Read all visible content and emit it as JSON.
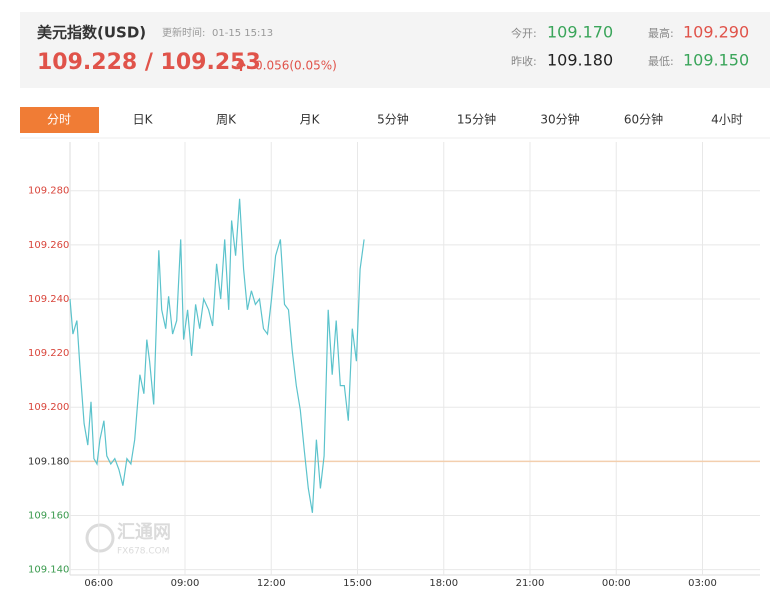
{
  "header": {
    "title": "美元指数(USD)",
    "update_label": "更新时间:",
    "update_time": "01-15 15:13",
    "price": "109.228 / 109.253",
    "change": "0.056(0.05%)",
    "open_label": "今开:",
    "open": "109.170",
    "high_label": "最高:",
    "high": "109.290",
    "prev_close_label": "昨收:",
    "prev_close": "109.180",
    "low_label": "最低:",
    "low": "109.150"
  },
  "tabs": [
    "分时",
    "日K",
    "周K",
    "月K",
    "5分钟",
    "15分钟",
    "30分钟",
    "60分钟",
    "4小时"
  ],
  "watermark": {
    "name": "汇通网",
    "site": "FX678.COM"
  },
  "chart_data": {
    "type": "line",
    "reference_line": 109.18,
    "reference_color": "#f3cfae",
    "grid": true,
    "xlim": [
      5,
      29
    ],
    "xticks": [
      {
        "value": 6,
        "label": "06:00"
      },
      {
        "value": 9,
        "label": "09:00"
      },
      {
        "value": 12,
        "label": "12:00"
      },
      {
        "value": 15,
        "label": "15:00"
      },
      {
        "value": 18,
        "label": "18:00"
      },
      {
        "value": 21,
        "label": "21:00"
      },
      {
        "value": 24,
        "label": "00:00"
      },
      {
        "value": 27,
        "label": "03:00"
      }
    ],
    "ylim": [
      109.138,
      109.298
    ],
    "yticks": [
      {
        "value": 109.14,
        "label": "109.140"
      },
      {
        "value": 109.16,
        "label": "109.160"
      },
      {
        "value": 109.18,
        "label": "109.180"
      },
      {
        "value": 109.2,
        "label": "109.200"
      },
      {
        "value": 109.22,
        "label": "109.220"
      },
      {
        "value": 109.24,
        "label": "109.240"
      },
      {
        "value": 109.26,
        "label": "109.260"
      },
      {
        "value": 109.28,
        "label": "109.280"
      }
    ],
    "x": [
      5.0,
      5.1,
      5.24,
      5.35,
      5.49,
      5.62,
      5.73,
      5.83,
      5.94,
      6.04,
      6.18,
      6.28,
      6.42,
      6.56,
      6.7,
      6.84,
      6.98,
      7.12,
      7.25,
      7.43,
      7.57,
      7.67,
      7.77,
      7.91,
      8.09,
      8.19,
      8.33,
      8.43,
      8.57,
      8.71,
      8.85,
      8.95,
      9.09,
      9.23,
      9.37,
      9.51,
      9.65,
      9.82,
      9.96,
      10.1,
      10.24,
      10.38,
      10.52,
      10.62,
      10.76,
      10.9,
      11.04,
      11.17,
      11.31,
      11.45,
      11.59,
      11.73,
      11.87,
      12.01,
      12.15,
      12.32,
      12.46,
      12.6,
      12.73,
      12.87,
      13.01,
      13.15,
      13.29,
      13.43,
      13.57,
      13.71,
      13.84,
      13.98,
      14.12,
      14.26,
      14.4,
      14.54,
      14.68,
      14.82,
      14.96,
      15.09,
      15.23
    ],
    "series": [
      {
        "color": "#5cc3cc",
        "values": [
          109.24,
          109.227,
          109.232,
          109.214,
          109.194,
          109.186,
          109.202,
          109.181,
          109.179,
          109.188,
          109.195,
          109.182,
          109.179,
          109.181,
          109.177,
          109.171,
          109.181,
          109.179,
          109.188,
          109.212,
          109.205,
          109.225,
          109.217,
          109.201,
          109.258,
          109.236,
          109.229,
          109.241,
          109.227,
          109.232,
          109.262,
          109.225,
          109.236,
          109.219,
          109.238,
          109.229,
          109.24,
          109.236,
          109.23,
          109.253,
          109.24,
          109.262,
          109.236,
          109.269,
          109.256,
          109.277,
          109.251,
          109.236,
          109.243,
          109.238,
          109.24,
          109.229,
          109.227,
          109.24,
          109.256,
          109.262,
          109.238,
          109.236,
          109.221,
          109.208,
          109.199,
          109.184,
          109.17,
          109.161,
          109.188,
          109.17,
          109.182,
          109.236,
          109.212,
          109.232,
          109.208,
          109.208,
          109.195,
          109.229,
          109.217,
          109.251,
          109.262
        ]
      }
    ]
  }
}
